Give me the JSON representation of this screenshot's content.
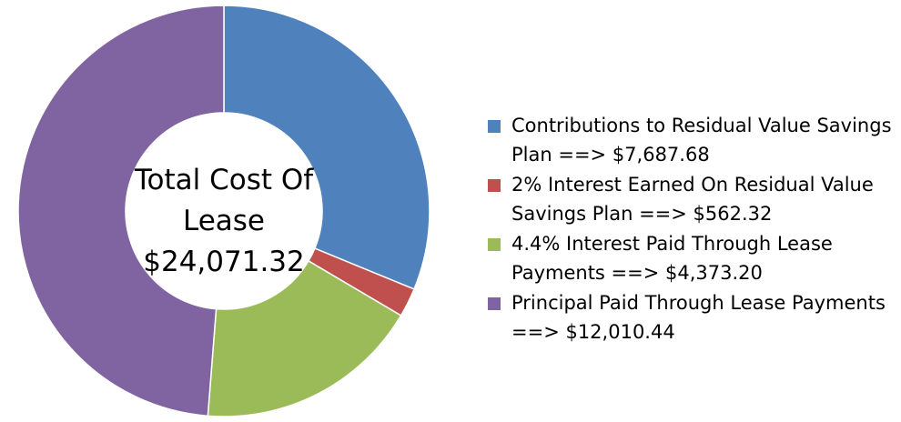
{
  "chart_data": {
    "type": "pie",
    "donut": true,
    "center_text": [
      "Total Cost Of",
      "Lease",
      "$24,071.32"
    ],
    "slices": [
      {
        "label": "Contributions to Residual Value Savings Plan ==> $7,687.68",
        "value": 7687.68,
        "color": "#4F81BD"
      },
      {
        "label": "2% Interest Earned On Residual Value Savings Plan ==> $562.32",
        "value": 562.32,
        "color": "#C0504D"
      },
      {
        "label": "4.4% Interest Paid Through Lease Payments ==> $4,373.20",
        "value": 4373.2,
        "color": "#9BBB59"
      },
      {
        "label": "Principal Paid Through Lease Payments ==> $12,010.44",
        "value": 12010.44,
        "color": "#8064A2"
      }
    ],
    "legend_position": "right"
  }
}
